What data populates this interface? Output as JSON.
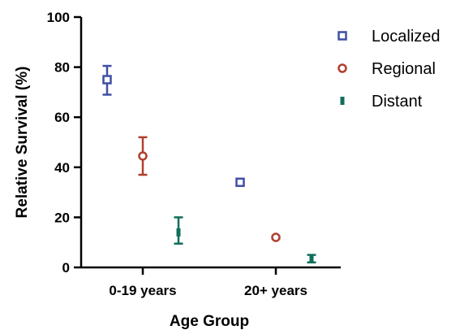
{
  "chart_data": {
    "type": "scatter",
    "title": "",
    "xlabel": "Age Group",
    "ylabel": "Relative Survival (%)",
    "categories": [
      "0-19 years",
      "20+ years"
    ],
    "ylim": [
      0,
      100
    ],
    "yticks": [
      0,
      20,
      40,
      60,
      80,
      100
    ],
    "grid": false,
    "legend": "right",
    "series": [
      {
        "name": "Localized",
        "marker": "square",
        "color": "#3f4fa3",
        "values": [
          75,
          34
        ],
        "err_low": [
          69,
          34
        ],
        "err_high": [
          80.5,
          34
        ]
      },
      {
        "name": "Regional",
        "marker": "circle",
        "color": "#b0402e",
        "values": [
          44.5,
          12
        ],
        "err_low": [
          37,
          11.5
        ],
        "err_high": [
          52,
          12.5
        ]
      },
      {
        "name": "Distant",
        "marker": "bar",
        "color": "#0f6f5c",
        "values": [
          14,
          3.5
        ],
        "err_low": [
          9.5,
          2
        ],
        "err_high": [
          20,
          5
        ]
      }
    ]
  }
}
